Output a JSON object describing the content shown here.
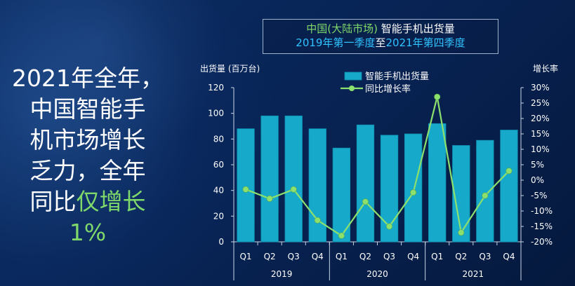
{
  "headline": {
    "line1": "2021年全年，",
    "line2": "中国智能手",
    "line3": "机市场增长",
    "line4": "乏力，全年",
    "line5_prefix": "同比",
    "line5_highlight": "仅增长",
    "line6": "1%"
  },
  "title": {
    "line1_green": "中国(大陆市场)",
    "line1_white": " 智能手机出货量",
    "line2_part1": "2019年第一季度",
    "line2_white": "至",
    "line2_part2": "2021年第四季度"
  },
  "colors": {
    "bar": "#17a9c9",
    "bar_edge": "#0e8fb0",
    "line": "#8ce06e",
    "highlight": "#7fd86a",
    "title_blue": "#2fc3ff"
  },
  "chart_data": {
    "type": "bar+line",
    "ylabel_left": "出货量 (百万台)",
    "ylabel_right": "增长率",
    "y_left": {
      "min": 0,
      "max": 120,
      "ticks": [
        "0",
        "20",
        "40",
        "60",
        "80",
        "100",
        "120"
      ]
    },
    "y_right": {
      "min": -20,
      "max": 30,
      "ticks": [
        "-20%",
        "-15%",
        "-10%",
        "-5%",
        "0%",
        "5%",
        "10%",
        "15%",
        "20%",
        "25%",
        "30%"
      ]
    },
    "categories": [
      "Q1",
      "Q2",
      "Q3",
      "Q4",
      "Q1",
      "Q2",
      "Q3",
      "Q4",
      "Q1",
      "Q2",
      "Q3",
      "Q4"
    ],
    "year_groups": [
      {
        "label": "2019",
        "start": 0,
        "count": 4
      },
      {
        "label": "2020",
        "start": 4,
        "count": 4
      },
      {
        "label": "2021",
        "start": 8,
        "count": 4
      }
    ],
    "series": [
      {
        "name": "智能手机出货量",
        "kind": "bar",
        "axis": "left",
        "values": [
          88,
          98,
          98,
          88,
          73,
          91,
          83,
          84,
          92,
          75,
          79,
          87
        ]
      },
      {
        "name": "同比增长率",
        "kind": "line",
        "axis": "right",
        "values": [
          -3,
          -6,
          -3,
          -13,
          -18,
          -7,
          -15,
          -4,
          27,
          -17,
          -5,
          3
        ]
      }
    ],
    "legend_position": "top-center",
    "grid": false
  }
}
